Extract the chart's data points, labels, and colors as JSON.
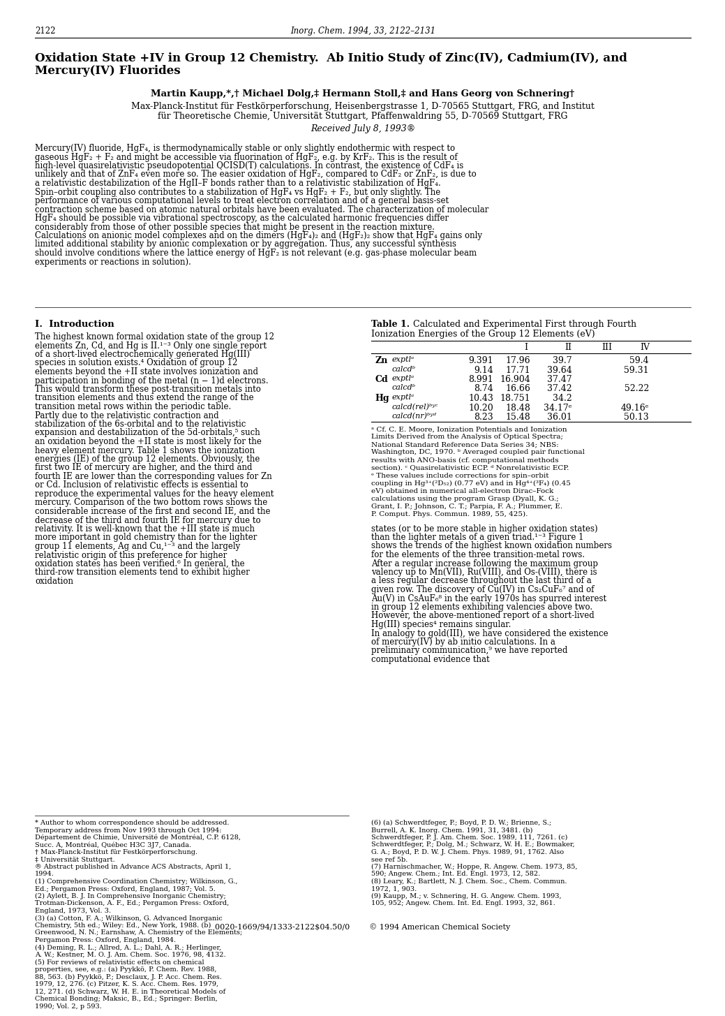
{
  "page_number": "2122",
  "journal_header": "Inorg. Chem. 1994, 33, 2122–2131",
  "title_line1": "Oxidation State +IV in Group 12 Chemistry.  Ab Initio Study of Zinc(IV), Cadmium(IV), and",
  "title_line2": "Mercury(IV) Fluorides",
  "authors": "Martin Kaupp,*,† Michael Dolg,‡ Hermann Stoll,‡ and Hans Georg von Schnering†",
  "affiliation1": "Max-Planck-Institut für Festkörperforschung, Heisenbergstrasse 1, D-70565 Stuttgart, FRG, and Institut",
  "affiliation2": "für Theoretische Chemie, Universität Stuttgart, Pfaffenwaldring 55, D-70569 Stuttgart, FRG",
  "received": "Received July 8, 1993®",
  "abstract": "Mercury(IV) fluoride, HgF₄, is thermodynamically stable or only slightly endothermic with respect to gaseous HgF₂ + F₂ and might be accessible via fluorination of HgF₂, e.g. by KrF₂.  This is the result of high-level quasirelativistic pseudopotential QCISD(T) calculations.  In contrast, the existence of CdF₄ is unlikely and that of ZnF₄ even more so.  The easier oxidation of HgF₂, compared to CdF₂ or ZnF₂, is due to a relativistic destabilization of the HgII–F bonds rather than to a relativistic stabilization of HgF₄.  Spin–orbit coupling also contributes to a stabilization of HgF₄ vs HgF₂ + F₂, but only slightly.  The performance of various computational levels to treat electron correlation and of a general basis-set contraction scheme based on atomic natural orbitals have been evaluated.  The characterization of molecular HgF₄ should be possible via vibrational spectroscopy, as the calculated harmonic frequencies differ considerably from those of other possible species that might be present in the reaction mixture. Calculations on anionic model complexes and on the dimers (HgF₄)₂ and (HgF₂)₂ show that HgF₄ gains only limited additional stability by anionic complexation or by aggregation.  Thus, any successful synthesis should involve conditions where the lattice energy of HgF₂ is not relevant (e.g. gas-phase molecular beam experiments or reactions in solution).",
  "section_intro_title": "I.  Introduction",
  "intro_text": "The highest known formal oxidation state of the group 12 elements Zn, Cd, and Hg is II.¹⁻³  Only one single report of a short-lived electrochemically generated Hg(III) species in solution exists.⁴  Oxidation of group 12 elements beyond the +II state involves ionization and participation in bonding of the metal (n − 1)d electrons.  This would transform these post-transition metals into transition elements and thus extend the range of the transition metal rows within the periodic table.\n    Partly due to the relativistic contraction and stabilization of the 6s-orbital and to the relativistic expansion and destabilization of the 5d-orbitals,⁵ such an oxidation beyond the +II state is most likely for the heavy element mercury.  Table 1 shows the ionization energies (IE) of the group 12 elements.  Obviously, the first two IE of mercury are higher, and the third and fourth IE are lower than the corresponding values for Zn or Cd.  Inclusion of relativistic effects is essential to reproduce the experimental values for the heavy element mercury.  Comparison of the two bottom rows shows the considerable increase of the first and second IE, and the decrease of the third and fourth IE for mercury due to relativity.  It is well-known that the +III state is much more important in gold chemistry than for the lighter group 11 elements, Ag and Cu,¹⁻³ and the largely relativistic origin of this preference for higher oxidation states has been verified.⁶  In general, the third-row transition elements tend to exhibit higher oxidation",
  "table1_bold": "Table 1.",
  "table1_title_rest": "  Calculated and Experimental First through Fourth",
  "table1_title_line2": "Ionization Energies of the Group 12 Elements (eV)",
  "table1_rows": [
    [
      "Zn",
      "exptlᵃ",
      "9.391",
      "17.96",
      "39.7",
      "59.4"
    ],
    [
      "",
      "calcdᵇ",
      "9.14",
      "17.71",
      "39.64",
      "59.31"
    ],
    [
      "Cd",
      "exptlᵃ",
      "8.991",
      "16.904",
      "37.47",
      ""
    ],
    [
      "",
      "calcdᵇ",
      "8.74",
      "16.66",
      "37.42",
      "52.22"
    ],
    [
      "Hg",
      "exptlᵃ",
      "10.43",
      "18.751",
      "34.2",
      ""
    ],
    [
      "",
      "calcd(rel)ᵇʸᶜ",
      "10.20",
      "18.48",
      "34.17ᵉ",
      "49.16ᵉ"
    ],
    [
      "",
      "calcd(nr)ᵇʸᵈ",
      "8.23",
      "15.48",
      "36.01",
      "50.13"
    ]
  ],
  "table1_footnotes": "ᵃ Cf. C. E. Moore, Ionization Potentials and Ionization Limits Derived from the Analysis of Optical Spectra; National Standard Reference Data Series 34;  NBS:  Washington, DC, 1970.  ᵇ Averaged coupled pair functional results with ANO-basis (cf. computational methods section).  ᶜ Quasirelativistic ECP.  ᵈ Nonrelativistic ECP.  ᵉ These values include corrections for spin–orbit coupling in Hg³⁺(²D₅₂) (0.77 eV) and in Hg⁴⁺(³F₄) (0.45 eV) obtained in numerical all-electron Dirac–Fock calculations using the program Grasp (Dyall, K. G.; Grant, I. P.; Johnson, C. T.; Parpia, F. A.; Plummer, E. P. Comput. Phys. Commun. 1989, 55, 425).",
  "right_col_text": "states (or to be more stable in higher oxidation states) than the lighter metals of a given triad.¹⁻³  Figure 1 shows the trends of the highest known oxidation numbers for the elements of the three transition-metal rows.  After a regular increase following the maximum group valency up to Mn(VII), Ru(VIII), and Os-(VIII), there is a less regular decrease throughout the last third of a given row.  The discovery of Cu(IV) in Cs₂CuF₆⁷ and of Au(V) in CsAuF₆⁸ in the early 1970s has spurred interest in group 12 elements exhibiting valencies above two.  However, the above-mentioned report of a short-lived Hg(III) species⁴ remains singular.\n    In analogy to gold(III), we have considered the existence of mercury(IV) by ab initio calculations.  In a preliminary communication,⁹ we have reported computational evidence that",
  "footnotes_bottom": "* Author to whom correspondence should be addressed.  Temporary address from Nov 1993 through Oct 1994: Département de Chimie, Université de Montréal, C.P. 6128, Succ. A, Montréal, Québec H3C 3J7, Canada.\n† Max-Planck-Institut für Festkörperforschung.\n‡ Universität Stuttgart.\n® Abstract published in Advance ACS Abstracts, April 1, 1994.\n(1) Comprehensive Coordination Chemistry; Wilkinson, G., Ed.; Pergamon Press: Oxford, England, 1987; Vol. 5.\n(2) Aylett, B. J. In Comprehensive Inorganic Chemistry; Trotman-Dickenson, A. F., Ed.; Pergamon Press: Oxford, England, 1973, Vol. 3.\n(3) (a) Cotton, F. A.; Wilkinson, G. Advanced Inorganic Chemistry, 5th ed.; Wiley: Ed., New York, 1988.  (b) Greenwood, N. N.; Earnshaw, A. Chemistry of the Elements; Pergamon Press: Oxford, England, 1984.\n(4) Deming, R. L.; Allred, A. L.; Dahl, A. R.; Herlinger, A. W.; Kestner, M. O. J. Am. Chem. Soc. 1976, 98, 4132.\n(5) For reviews of relativistic effects on chemical properties, see, e.g.: (a) Pyykkö, P. Chem. Rev. 1988, 88, 563.  (b) Pyykkö, P.; Desclaux, J. P. Acc. Chem. Res. 1979, 12, 276.  (c) Pitzer, K. S. Acc. Chem. Res. 1979, 12, 271.  (d) Schwarz, W. H. E. in Theoretical Models of Chemical Bonding; Maksic, B., Ed.; Springer: Berlin, 1990; Vol. 2, p 593.",
  "refs_right": "(6) (a) Schwerdtfeger, P.; Boyd, P. D. W.; Brienne, S.; Burrell, A. K. Inorg. Chem. 1991, 31, 3481.  (b) Schwerdtfeger, P. J. Am. Chem. Soc. 1989, 111, 7261.  (c) Schwerdtfeger, P.; Dolg, M.; Schwarz, W. H. E.; Bowmaker, G. A.; Boyd, P. D. W. J. Chem. Phys. 1989, 91, 1762.  Also see ref 5b.\n(7) Harnischmacher, W.; Hoppe, R. Angew. Chem. 1973, 85, 590; Angew. Chem.; Int. Ed. Engl. 1973, 12, 582.\n(8) Leary, K.; Bartlett, N. J. Chem. Soc., Chem. Commun. 1972, 1, 903.\n(9) Kaupp, M.; v. Schnering, H. G. Angew. Chem. 1993, 105, 952; Angew. Chem. Int. Ed. Engl. 1993, 32, 861.",
  "copyright": "0020-1669/94/1333-2122$04.50/0        © 1994 American Chemical Society",
  "bg_color": "#ffffff",
  "text_color": "#000000"
}
